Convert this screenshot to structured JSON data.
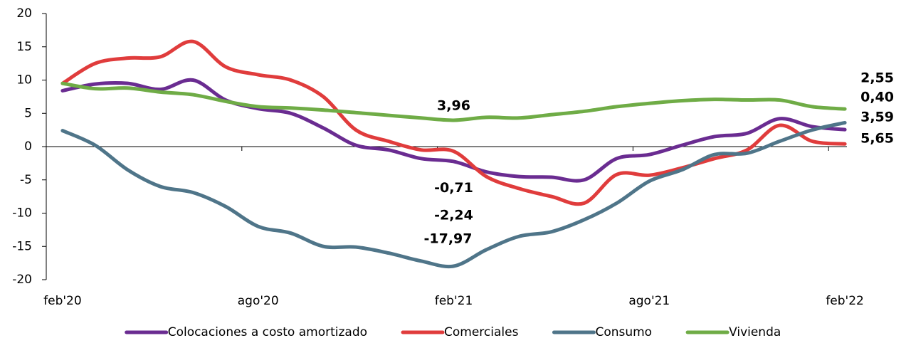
{
  "chart_data": {
    "type": "line",
    "categories": [
      "feb'20",
      null,
      null,
      null,
      null,
      null,
      "ago'20",
      null,
      null,
      null,
      null,
      null,
      "feb'21",
      null,
      null,
      null,
      null,
      null,
      "ago'21",
      null,
      null,
      null,
      null,
      null,
      "feb'22"
    ],
    "series": [
      {
        "name": "Colocaciones a costo amortizado",
        "color": "#6a2c91",
        "label_color": "#7030a0",
        "values": [
          8.4,
          9.4,
          9.5,
          8.6,
          10.0,
          7.0,
          5.7,
          5.0,
          2.8,
          0.2,
          -0.5,
          -1.8,
          -2.24,
          -3.8,
          -4.5,
          -4.6,
          -5.0,
          -1.8,
          -1.2,
          0.2,
          1.5,
          2.0,
          4.2,
          3.0,
          2.55
        ],
        "value_labels": [
          null,
          null,
          null,
          null,
          null,
          null,
          null,
          null,
          null,
          null,
          null,
          null,
          "-2,24",
          null,
          null,
          null,
          null,
          null,
          null,
          null,
          null,
          null,
          null,
          null,
          "2,55"
        ]
      },
      {
        "name": "Comerciales",
        "color": "#e03c3c",
        "label_color": "#c00000",
        "values": [
          9.5,
          12.5,
          13.3,
          13.5,
          15.8,
          12.0,
          10.8,
          10.0,
          7.5,
          2.5,
          0.8,
          -0.5,
          -0.71,
          -4.5,
          -6.3,
          -7.5,
          -8.5,
          -4.2,
          -4.3,
          -3.2,
          -1.8,
          -0.5,
          3.2,
          0.8,
          0.4
        ],
        "value_labels": [
          null,
          null,
          null,
          null,
          null,
          null,
          null,
          null,
          null,
          null,
          null,
          null,
          "-0,71",
          null,
          null,
          null,
          null,
          null,
          null,
          null,
          null,
          null,
          null,
          null,
          "0,40"
        ]
      },
      {
        "name": "Consumo",
        "color": "#4f7589",
        "label_color": "#0070c0",
        "values": [
          2.4,
          0.2,
          -3.5,
          -6.0,
          -6.9,
          -9.0,
          -12.0,
          -13.0,
          -15.0,
          -15.1,
          -16.0,
          -17.2,
          -17.97,
          -15.5,
          -13.5,
          -12.8,
          -11.0,
          -8.5,
          -5.2,
          -3.5,
          -1.2,
          -1.0,
          0.8,
          2.5,
          3.59
        ],
        "value_labels": [
          null,
          null,
          null,
          null,
          null,
          null,
          null,
          null,
          null,
          null,
          null,
          null,
          "-17,97",
          null,
          null,
          null,
          null,
          null,
          null,
          null,
          null,
          null,
          null,
          null,
          "3,59"
        ]
      },
      {
        "name": "Vivienda",
        "color": "#6fac46",
        "label_color": "#6aa336",
        "values": [
          9.5,
          8.7,
          8.8,
          8.2,
          7.8,
          6.8,
          6.0,
          5.8,
          5.5,
          5.1,
          4.7,
          4.3,
          3.96,
          4.4,
          4.3,
          4.8,
          5.3,
          6.0,
          6.5,
          6.9,
          7.1,
          7.0,
          7.0,
          6.0,
          5.65
        ],
        "value_labels": [
          null,
          null,
          null,
          null,
          null,
          null,
          null,
          null,
          null,
          null,
          null,
          null,
          "3,96",
          null,
          null,
          null,
          null,
          null,
          null,
          null,
          null,
          null,
          null,
          null,
          "5,65"
        ]
      }
    ],
    "ylim": [
      -20,
      20
    ],
    "yticks": [
      -20,
      -15,
      -10,
      -5,
      0,
      5,
      10,
      15,
      20
    ],
    "legend": "bottom"
  }
}
